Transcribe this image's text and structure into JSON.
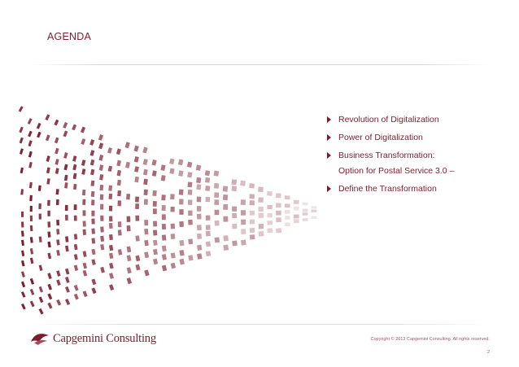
{
  "slide": {
    "title": "AGENDA",
    "agenda_items": [
      {
        "text": "Revolution of Digitalization"
      },
      {
        "text": "Power of Digitalization"
      },
      {
        "text": "Business Transformation:",
        "continuation": "Option for Postal Service 3.0 –"
      },
      {
        "text": "Define the Transformation"
      }
    ],
    "footer": {
      "logo_text": "Capgemini Consulting",
      "copyright": "Copyright © 2013 Capgemini Consulting. All rights reserved.",
      "page_number": "2"
    },
    "colors": {
      "accent": "#7a1c2e"
    },
    "icons": {
      "bullet": "triangle-bullet-icon",
      "logo": "capgemini-spade-icon"
    }
  }
}
